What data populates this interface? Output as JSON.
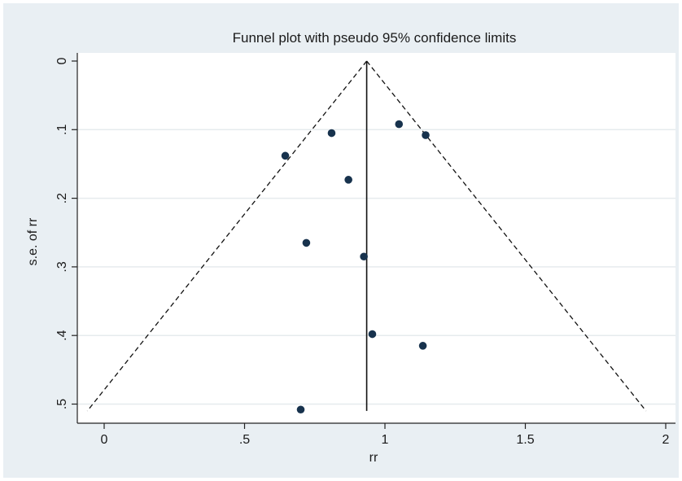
{
  "chart_data": {
    "type": "scatter",
    "title": "Funnel plot with pseudo 95% confidence limits",
    "xlabel": "rr",
    "ylabel": "s.e. of rr",
    "xlim": [
      -0.1,
      2.02
    ],
    "ylim": [
      0,
      0.525
    ],
    "y_reversed": true,
    "xticks": [
      0,
      0.5,
      1,
      1.5,
      2
    ],
    "xtick_labels": [
      "0",
      ".5",
      "1",
      "1.5",
      "2"
    ],
    "yticks": [
      0,
      0.1,
      0.2,
      0.3,
      0.4,
      0.5
    ],
    "ytick_labels": [
      "0",
      ".1",
      ".2",
      ".3",
      ".4",
      ".5"
    ],
    "grid": "horizontal",
    "pooled_estimate": 0.935,
    "funnel": {
      "apex": [
        0.935,
        0
      ],
      "left_base": [
        -0.06,
        0.51
      ],
      "right_base": [
        1.93,
        0.51
      ],
      "style": "dashed"
    },
    "points": [
      {
        "x": 1.05,
        "y": 0.092
      },
      {
        "x": 0.81,
        "y": 0.105
      },
      {
        "x": 1.145,
        "y": 0.108
      },
      {
        "x": 0.645,
        "y": 0.138
      },
      {
        "x": 0.87,
        "y": 0.173
      },
      {
        "x": 0.72,
        "y": 0.265
      },
      {
        "x": 0.925,
        "y": 0.285
      },
      {
        "x": 0.955,
        "y": 0.398
      },
      {
        "x": 1.135,
        "y": 0.415
      },
      {
        "x": 0.7,
        "y": 0.508
      }
    ],
    "colors": {
      "outer_background": "#e9eff3",
      "plot_background": "#ffffff",
      "grid": "#e6ebee",
      "point": "#17324d",
      "line": "#111111"
    }
  }
}
